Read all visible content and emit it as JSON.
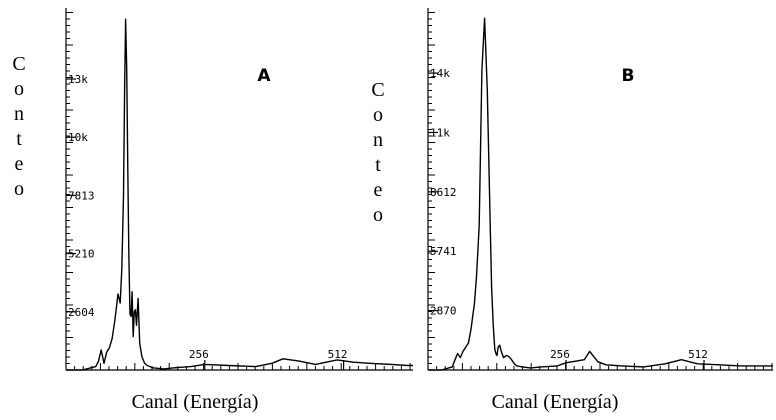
{
  "chart_data": [
    {
      "type": "line",
      "panel_label": "A",
      "ylabel": "Conteo",
      "xlabel": "Canal (Energía)",
      "xlim": [
        0,
        640
      ],
      "ylim": [
        0,
        16200
      ],
      "x_tick_labels": [
        "256",
        "512"
      ],
      "x_tick_values": [
        256,
        512
      ],
      "y_tick_labels": [
        "2604",
        "5210",
        "7813",
        "10k",
        "13k"
      ],
      "y_tick_values": [
        2604,
        5210,
        7813,
        10417,
        13021
      ],
      "grid": false,
      "series": [
        {
          "x": [
            0,
            30,
            55,
            60,
            65,
            70,
            75,
            80,
            85,
            90,
            93,
            96,
            100,
            103,
            106,
            108,
            110,
            112,
            114,
            116,
            118,
            120,
            122,
            124,
            126,
            128,
            130,
            133,
            136,
            140,
            145,
            150,
            160,
            180,
            200,
            230,
            256,
            300,
            350,
            380,
            400,
            430,
            460,
            500,
            530,
            560,
            600,
            630,
            640
          ],
          "y": [
            0,
            0,
            150,
            400,
            900,
            300,
            800,
            1000,
            1400,
            2200,
            2800,
            3400,
            3000,
            4500,
            7800,
            12500,
            15700,
            13500,
            9000,
            5000,
            2500,
            2400,
            3500,
            1500,
            2600,
            2700,
            2000,
            3200,
            1200,
            600,
            300,
            200,
            100,
            50,
            100,
            150,
            250,
            200,
            150,
            300,
            500,
            400,
            250,
            450,
            350,
            300,
            250,
            200,
            200
          ]
        }
      ]
    },
    {
      "type": "line",
      "panel_label": "B",
      "ylabel": "Conteo",
      "xlabel": "Canal (Energía)",
      "xlim": [
        0,
        640
      ],
      "ylim": [
        0,
        17500
      ],
      "x_tick_labels": [
        "256",
        "512"
      ],
      "x_tick_values": [
        256,
        512
      ],
      "y_tick_labels": [
        "2870",
        "5741",
        "8612",
        "11k",
        "14k"
      ],
      "y_tick_values": [
        2870,
        5741,
        8612,
        11483,
        14354
      ],
      "grid": false,
      "series": [
        {
          "x": [
            0,
            25,
            45,
            50,
            55,
            60,
            65,
            70,
            75,
            80,
            83,
            86,
            90,
            95,
            100,
            105,
            110,
            115,
            118,
            121,
            124,
            126,
            128,
            130,
            133,
            136,
            140,
            145,
            150,
            155,
            160,
            165,
            175,
            190,
            210,
            240,
            256,
            290,
            300,
            315,
            330,
            360,
            400,
            440,
            470,
            500,
            540,
            580,
            640
          ],
          "y": [
            0,
            0,
            150,
            500,
            800,
            600,
            900,
            1100,
            1300,
            2000,
            2600,
            3200,
            4500,
            7000,
            14500,
            17000,
            13500,
            7500,
            4000,
            2200,
            1000,
            800,
            700,
            1100,
            1200,
            900,
            600,
            700,
            650,
            500,
            300,
            200,
            150,
            100,
            150,
            200,
            350,
            500,
            900,
            400,
            250,
            200,
            150,
            300,
            500,
            300,
            250,
            200,
            200
          ]
        }
      ]
    }
  ]
}
